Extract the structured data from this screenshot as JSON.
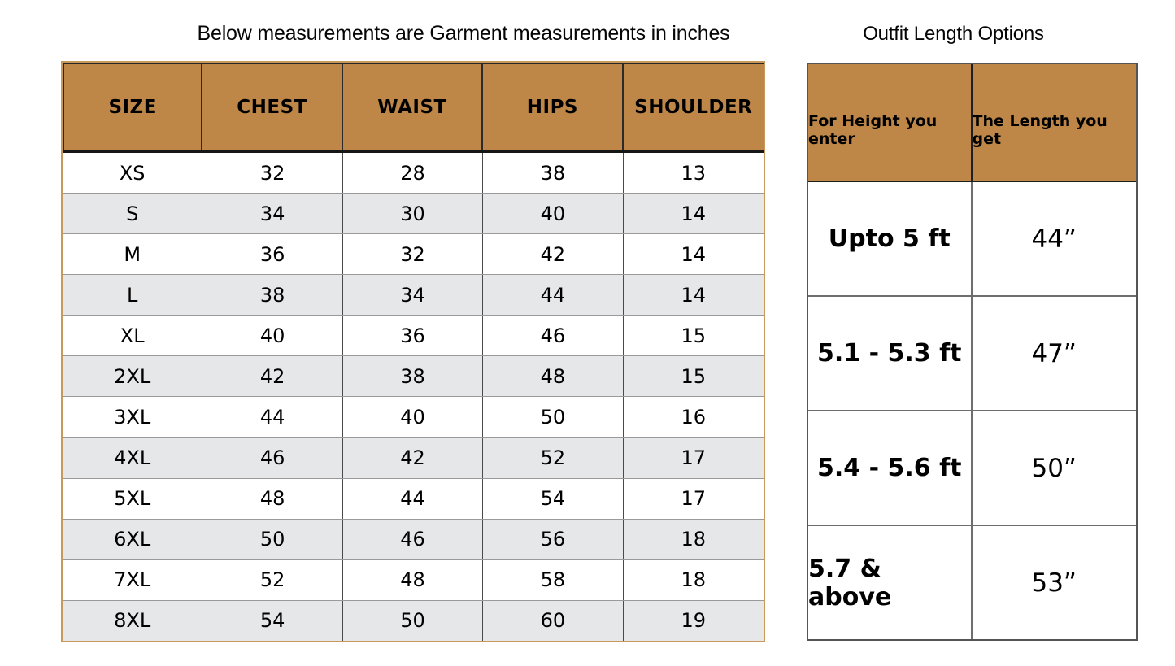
{
  "colors": {
    "header_bg": "#be8748",
    "stripe_bg": "#e6e7e9",
    "left_table_border": "#c9995c",
    "header_underline": "#161616",
    "body_vertical_line": "#4a4a4a",
    "body_horizontal_line": "#9a9a9a",
    "right_table_border": "#555555"
  },
  "size_chart": {
    "title": "Below measurements are Garment measurements in inches",
    "columns": [
      "SIZE",
      "CHEST",
      "WAIST",
      "HIPS",
      "SHOULDER"
    ],
    "rows": [
      [
        "XS",
        "32",
        "28",
        "38",
        "13"
      ],
      [
        "S",
        "34",
        "30",
        "40",
        "14"
      ],
      [
        "M",
        "36",
        "32",
        "42",
        "14"
      ],
      [
        "L",
        "38",
        "34",
        "44",
        "14"
      ],
      [
        "XL",
        "40",
        "36",
        "46",
        "15"
      ],
      [
        "2XL",
        "42",
        "38",
        "48",
        "15"
      ],
      [
        "3XL",
        "44",
        "40",
        "50",
        "16"
      ],
      [
        "4XL",
        "46",
        "42",
        "52",
        "17"
      ],
      [
        "5XL",
        "48",
        "44",
        "54",
        "17"
      ],
      [
        "6XL",
        "50",
        "46",
        "56",
        "18"
      ],
      [
        "7XL",
        "52",
        "48",
        "58",
        "18"
      ],
      [
        "8XL",
        "54",
        "50",
        "60",
        "19"
      ]
    ]
  },
  "length_options": {
    "title": "Outfit Length Options",
    "columns": [
      "For Height you enter",
      "The Length you get"
    ],
    "rows": [
      [
        "Upto 5 ft",
        "44”"
      ],
      [
        "5.1 - 5.3 ft",
        "47”"
      ],
      [
        "5.4 - 5.6 ft",
        "50”"
      ],
      [
        "5.7 & above",
        "53”"
      ]
    ]
  },
  "chart_data": [
    {
      "type": "table",
      "title": "Below measurements are Garment measurements in inches",
      "columns": [
        "SIZE",
        "CHEST",
        "WAIST",
        "HIPS",
        "SHOULDER"
      ],
      "rows": [
        [
          "XS",
          32,
          28,
          38,
          13
        ],
        [
          "S",
          34,
          30,
          40,
          14
        ],
        [
          "M",
          36,
          32,
          42,
          14
        ],
        [
          "L",
          38,
          34,
          44,
          14
        ],
        [
          "XL",
          40,
          36,
          46,
          15
        ],
        [
          "2XL",
          42,
          38,
          48,
          15
        ],
        [
          "3XL",
          44,
          40,
          50,
          16
        ],
        [
          "4XL",
          46,
          42,
          52,
          17
        ],
        [
          "5XL",
          48,
          44,
          54,
          17
        ],
        [
          "6XL",
          50,
          46,
          56,
          18
        ],
        [
          "7XL",
          52,
          48,
          58,
          18
        ],
        [
          "8XL",
          54,
          50,
          60,
          19
        ]
      ],
      "units": "inches"
    },
    {
      "type": "table",
      "title": "Outfit Length Options",
      "columns": [
        "For Height you enter",
        "The Length you get"
      ],
      "rows": [
        [
          "Upto 5 ft",
          "44”"
        ],
        [
          "5.1 - 5.3 ft",
          "47”"
        ],
        [
          "5.4 - 5.6 ft",
          "50”"
        ],
        [
          "5.7 & above",
          "53”"
        ]
      ]
    }
  ]
}
